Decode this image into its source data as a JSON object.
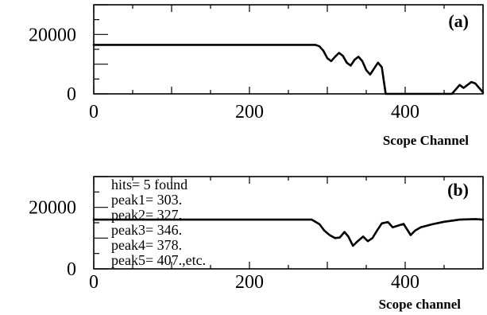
{
  "chart_data": [
    {
      "type": "line",
      "panel_label": "(a)",
      "xlabel": "Scope Channel",
      "ylabel": "",
      "xlim": [
        0,
        500
      ],
      "ylim": [
        0,
        30000
      ],
      "x_ticks": [
        {
          "value": 0,
          "label": "0"
        },
        {
          "value": 200,
          "label": "200"
        },
        {
          "value": 400,
          "label": "400"
        }
      ],
      "y_ticks": [
        {
          "value": 0,
          "label": "0"
        },
        {
          "value": 20000,
          "label": "20000"
        }
      ],
      "grid": false,
      "series": [
        {
          "x": [
            0,
            50,
            100,
            150,
            200,
            250,
            280,
            285,
            290,
            295,
            300,
            305,
            310,
            315,
            320,
            325,
            330,
            335,
            340,
            345,
            350,
            355,
            360,
            365,
            370,
            375,
            380,
            400,
            440,
            460,
            465,
            470,
            475,
            480,
            485,
            490,
            495,
            500
          ],
          "y": [
            16500,
            16500,
            16500,
            16500,
            16500,
            16500,
            16500,
            16500,
            16000,
            14500,
            12000,
            11000,
            12500,
            13800,
            12800,
            10500,
            9500,
            11500,
            12500,
            11000,
            8000,
            6500,
            8500,
            10500,
            9000,
            0,
            0,
            0,
            0,
            0,
            1500,
            3000,
            2000,
            3000,
            4000,
            3500,
            2000,
            500
          ]
        }
      ]
    },
    {
      "type": "line",
      "panel_label": "(b)",
      "xlabel": "Scope channel",
      "ylabel": "",
      "xlim": [
        0,
        500
      ],
      "ylim": [
        0,
        30000
      ],
      "x_ticks": [
        {
          "value": 0,
          "label": "0"
        },
        {
          "value": 200,
          "label": "200"
        },
        {
          "value": 400,
          "label": "400"
        }
      ],
      "y_ticks": [
        {
          "value": 0,
          "label": "0"
        },
        {
          "value": 20000,
          "label": "20000"
        }
      ],
      "grid": false,
      "annotations": [
        "hits=   5 found",
        "peak1=  303.",
        "peak2=  327.",
        "peak3=  346.",
        "peak4=  378.",
        "peak5=  407.,etc."
      ],
      "series": [
        {
          "x": [
            0,
            50,
            100,
            150,
            200,
            250,
            280,
            290,
            296,
            303,
            310,
            316,
            322,
            327,
            333,
            339,
            346,
            352,
            358,
            364,
            370,
            378,
            384,
            390,
            398,
            407,
            413,
            420,
            435,
            450,
            470,
            490,
            500
          ],
          "y": [
            16000,
            16000,
            16000,
            16000,
            16000,
            16000,
            16000,
            14500,
            12500,
            11000,
            10000,
            10200,
            12000,
            10500,
            7500,
            9000,
            10500,
            9000,
            10000,
            12500,
            14800,
            15200,
            13500,
            14000,
            14600,
            11000,
            12500,
            13500,
            14500,
            15300,
            16000,
            16200,
            16000
          ]
        }
      ]
    }
  ]
}
